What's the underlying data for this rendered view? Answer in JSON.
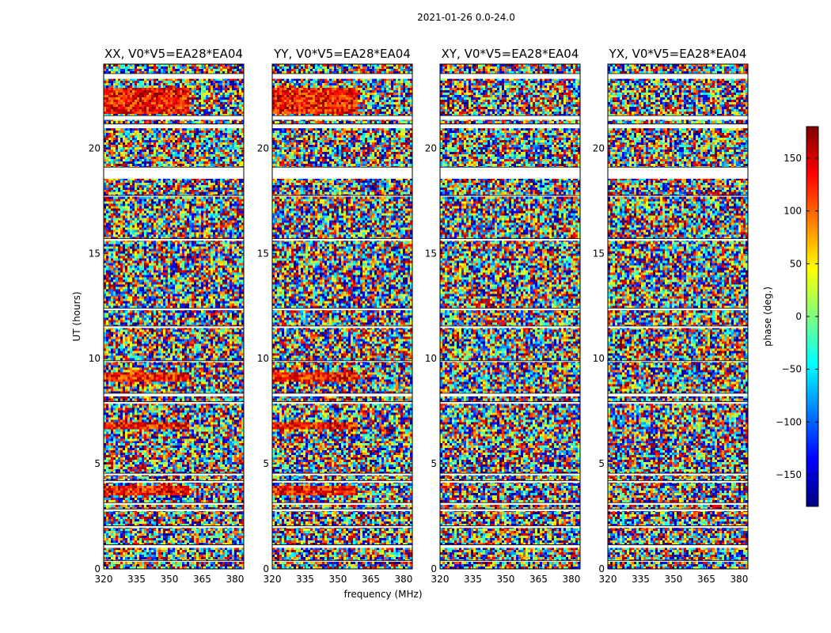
{
  "chart_data": {
    "type": "heatmap",
    "title": "2021-01-26 0.0-24.0",
    "xlabel": "frequency (MHz)",
    "ylabel": "UT (hours)",
    "xlim": [
      320,
      384
    ],
    "ylim": [
      0,
      24
    ],
    "x_ticks": [
      320,
      335,
      350,
      365,
      380
    ],
    "y_ticks": [
      0,
      5,
      10,
      15,
      20
    ],
    "colorbar": {
      "label": "phase (deg.)",
      "range": [
        -180,
        180
      ],
      "ticks": [
        150,
        100,
        50,
        0,
        -50,
        -100,
        -150
      ],
      "colormap": "jet",
      "colors": [
        "#00007f",
        "#0000ff",
        "#007fff",
        "#00ffff",
        "#7fff7f",
        "#ffff00",
        "#ff7f00",
        "#ff0000",
        "#7f0000"
      ]
    },
    "panels": [
      {
        "name": "XX, V0*V5=EA28*EA04",
        "warm_bias": true
      },
      {
        "name": "YY, V0*V5=EA28*EA04",
        "warm_bias": true
      },
      {
        "name": "XY, V0*V5=EA28*EA04",
        "warm_bias": false
      },
      {
        "name": "YX, V0*V5=EA28*EA04",
        "warm_bias": false
      }
    ],
    "flagged_ut_ranges": [
      [
        23.3,
        23.55
      ],
      [
        21.35,
        21.55
      ],
      [
        20.95,
        21.15
      ],
      [
        18.55,
        19.1
      ],
      [
        17.7,
        17.75
      ],
      [
        15.6,
        15.7
      ],
      [
        12.3,
        12.4
      ],
      [
        11.45,
        11.55
      ],
      [
        9.85,
        9.9
      ],
      [
        8.2,
        8.35
      ],
      [
        7.85,
        7.95
      ],
      [
        4.45,
        4.55
      ],
      [
        4.1,
        4.2
      ],
      [
        3.05,
        3.15
      ],
      [
        2.75,
        2.85
      ],
      [
        1.95,
        2.05
      ],
      [
        1.0,
        1.15
      ],
      [
        0.35,
        0.4
      ]
    ]
  }
}
